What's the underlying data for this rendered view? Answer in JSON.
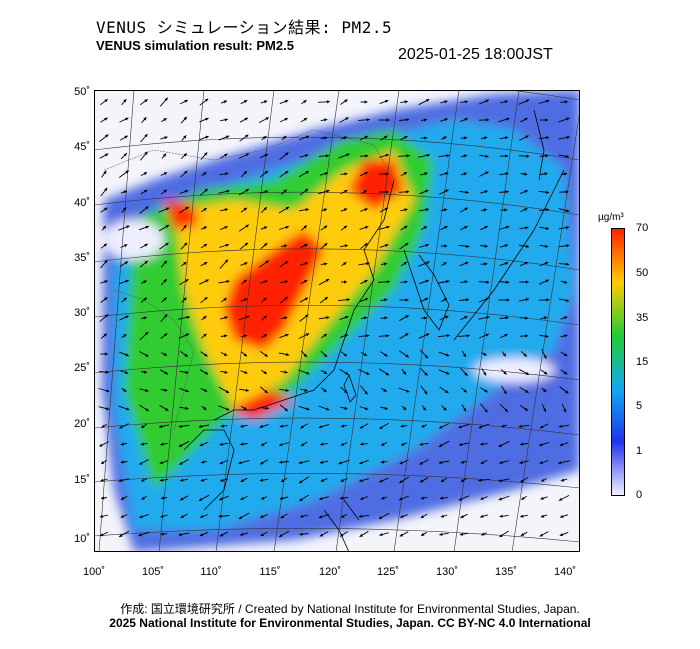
{
  "title_jp": "VENUS シミュレーション結果: PM2.5",
  "title_en": "VENUS simulation result: PM2.5",
  "timestamp": "2025-01-25 18:00JST",
  "map": {
    "lat_labels": [
      "50˚",
      "45˚",
      "40˚",
      "35˚",
      "30˚",
      "25˚",
      "20˚",
      "15˚",
      "10˚"
    ],
    "lon_labels": [
      "100˚",
      "105˚",
      "110˚",
      "115˚",
      "120˚",
      "125˚",
      "130˚",
      "135˚",
      "140˚"
    ]
  },
  "colorbar": {
    "unit": "µg/m³",
    "ticks": [
      "70",
      "50",
      "35",
      "15",
      "5",
      "1",
      "0"
    ],
    "colors": [
      "#f0f0ff",
      "#2233ee",
      "#11aaee",
      "#22cc33",
      "#ffcc00",
      "#ff2200"
    ]
  },
  "footer": {
    "credit": "作成: 国立環境研究所 / Created by National Institute for Environmental Studies, Japan.",
    "license": "2025 National Institute for Environmental Studies, Japan. CC BY-NC 4.0 International"
  }
}
